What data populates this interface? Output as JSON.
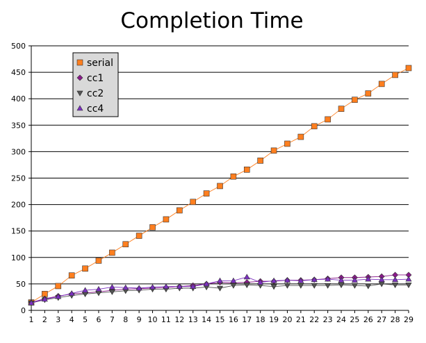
{
  "chart_data": {
    "type": "line",
    "title": "Completion Time",
    "xlabel": "",
    "ylabel": "",
    "x": [
      1,
      2,
      3,
      4,
      5,
      6,
      7,
      8,
      9,
      10,
      11,
      12,
      13,
      14,
      15,
      16,
      17,
      18,
      19,
      20,
      21,
      22,
      23,
      24,
      25,
      26,
      27,
      28,
      29
    ],
    "ylim": [
      0,
      500
    ],
    "yticks": [
      0,
      50,
      100,
      150,
      200,
      250,
      300,
      350,
      400,
      450,
      500
    ],
    "grid": "horizontal",
    "legend_position": "top-left",
    "series": [
      {
        "name": "serial",
        "color": "#ff7f1f",
        "marker": "square",
        "values": [
          15,
          31,
          46,
          66,
          79,
          94,
          109,
          125,
          141,
          157,
          172,
          189,
          205,
          221,
          235,
          253,
          266,
          283,
          302,
          315,
          328,
          348,
          361,
          381,
          398,
          410,
          428,
          445,
          458
        ]
      },
      {
        "name": "cc1",
        "color": "#8b1a8b",
        "marker": "diamond",
        "values": [
          15,
          22,
          27,
          31,
          33,
          35,
          38,
          40,
          41,
          42,
          43,
          45,
          47,
          50,
          53,
          52,
          53,
          55,
          55,
          57,
          57,
          58,
          60,
          62,
          62,
          63,
          64,
          67,
          67
        ]
      },
      {
        "name": "cc2",
        "color": "#555555",
        "marker": "triangle-down",
        "values": [
          14,
          20,
          24,
          28,
          31,
          33,
          35,
          37,
          38,
          40,
          40,
          42,
          42,
          44,
          42,
          47,
          48,
          47,
          45,
          47,
          47,
          47,
          47,
          48,
          47,
          46,
          50,
          48,
          48
        ]
      },
      {
        "name": "cc4",
        "color": "#7b2fbf",
        "marker": "triangle-up",
        "values": [
          14,
          21,
          26,
          32,
          38,
          40,
          44,
          43,
          42,
          44,
          45,
          45,
          45,
          50,
          56,
          56,
          63,
          53,
          56,
          57,
          56,
          58,
          59,
          57,
          57,
          59,
          58,
          58,
          59
        ]
      }
    ]
  }
}
